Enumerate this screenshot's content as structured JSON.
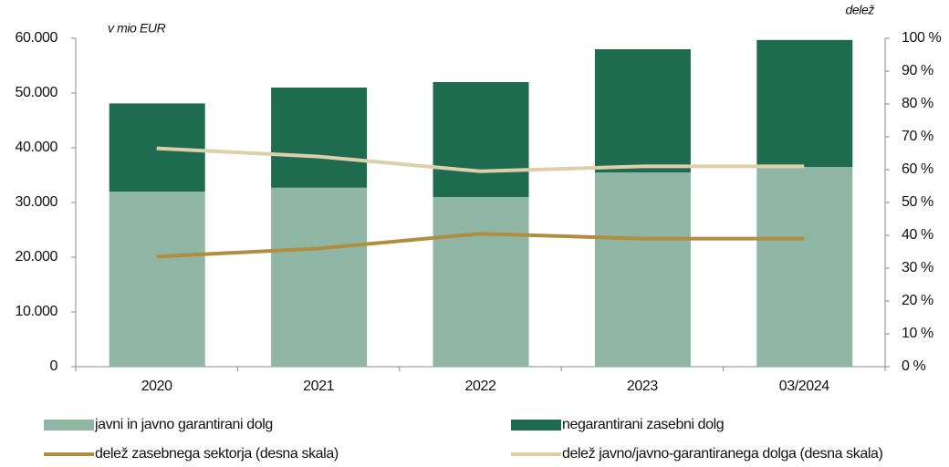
{
  "chart_data": {
    "type": "bar",
    "stacked": true,
    "annotations": [
      "v mio EUR",
      "delež"
    ],
    "categories": [
      "2020",
      "2021",
      "2022",
      "2023",
      "03/2024"
    ],
    "series": [
      {
        "name": "javni in javno garantirani dolg",
        "type": "bar",
        "color": "#8fb5a5",
        "values": [
          32000,
          32700,
          31000,
          35500,
          36500
        ]
      },
      {
        "name": "negarantirani zasebni dolg",
        "type": "bar",
        "color": "#1f6b50",
        "values": [
          16100,
          18300,
          21000,
          22500,
          23200
        ]
      },
      {
        "name": "delež zasebnega sektorja (desna skala)",
        "type": "line",
        "axis": "y2",
        "color": "#b08e3f",
        "values": [
          33.5,
          36,
          40.5,
          39,
          39
        ]
      },
      {
        "name": "delež javno/javno-garantiranega dolga (desna skala)",
        "type": "line",
        "axis": "y2",
        "color": "#ddd0a8",
        "values": [
          66.5,
          64,
          59.5,
          61,
          61
        ]
      }
    ],
    "ylim": [
      0,
      60000
    ],
    "yticks": [
      {
        "value": 0,
        "label": "0"
      },
      {
        "value": 10000,
        "label": "10.000"
      },
      {
        "value": 20000,
        "label": "20.000"
      },
      {
        "value": 30000,
        "label": "30.000"
      },
      {
        "value": 40000,
        "label": "40.000"
      },
      {
        "value": 50000,
        "label": "50.000"
      },
      {
        "value": 60000,
        "label": "60.000"
      }
    ],
    "y2lim": [
      0,
      100
    ],
    "y2ticks": [
      {
        "value": 0,
        "label": "0 %"
      },
      {
        "value": 10,
        "label": "10 %"
      },
      {
        "value": 20,
        "label": "20 %"
      },
      {
        "value": 30,
        "label": "30 %"
      },
      {
        "value": 40,
        "label": "40 %"
      },
      {
        "value": 50,
        "label": "50 %"
      },
      {
        "value": 60,
        "label": "60 %"
      },
      {
        "value": 70,
        "label": "70 %"
      },
      {
        "value": 80,
        "label": "80 %"
      },
      {
        "value": 90,
        "label": "90 %"
      },
      {
        "value": 100,
        "label": "100 %"
      }
    ],
    "grid": false
  }
}
